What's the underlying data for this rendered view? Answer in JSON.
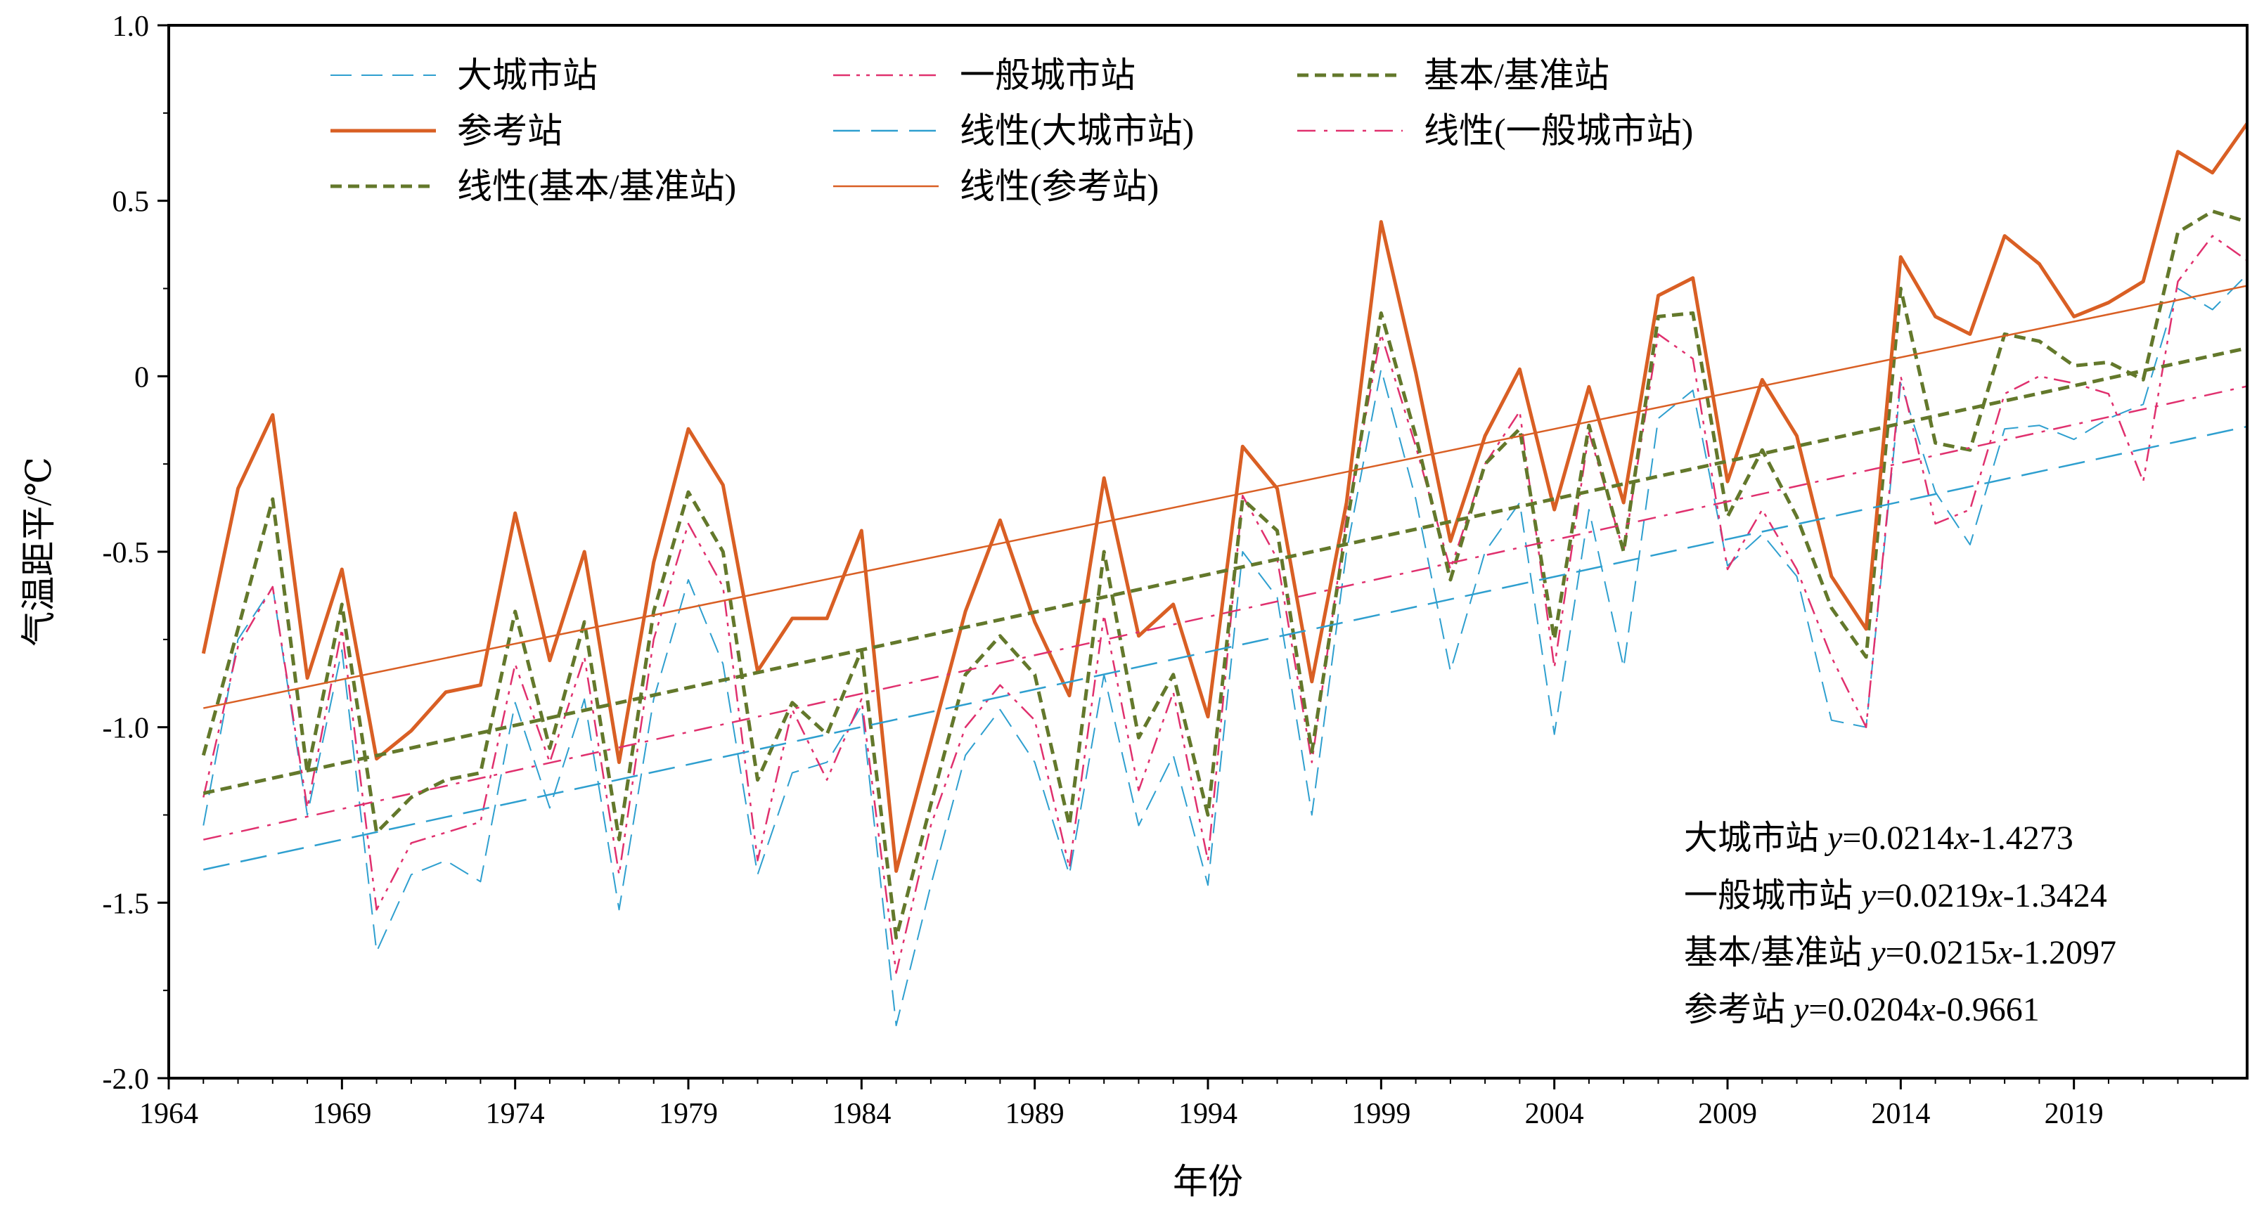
{
  "chart_data": {
    "type": "line",
    "xlabel": "年份",
    "ylabel": "气温距平/℃",
    "xlim": [
      1964,
      2024
    ],
    "ylim": [
      -2.0,
      1.0
    ],
    "x_ticks": [
      1964,
      1969,
      1974,
      1979,
      1984,
      1989,
      1994,
      1999,
      2004,
      2009,
      2014,
      2019
    ],
    "y_ticks": [
      {
        "value": 1.0,
        "label": "1.0"
      },
      {
        "value": 0.5,
        "label": "0.5"
      },
      {
        "value": 0,
        "label": "0"
      },
      {
        "value": -0.5,
        "label": "-0.5"
      },
      {
        "value": -1.0,
        "label": "-1.0"
      },
      {
        "value": -1.5,
        "label": "-1.5"
      },
      {
        "value": -2.0,
        "label": "-2.0"
      }
    ],
    "grid": false,
    "legend_position": "top-left",
    "x": [
      1965,
      1966,
      1967,
      1968,
      1969,
      1970,
      1971,
      1972,
      1973,
      1974,
      1975,
      1976,
      1977,
      1978,
      1979,
      1980,
      1981,
      1982,
      1983,
      1984,
      1985,
      1986,
      1987,
      1988,
      1989,
      1990,
      1991,
      1992,
      1993,
      1994,
      1995,
      1996,
      1997,
      1998,
      1999,
      2000,
      2001,
      2002,
      2003,
      2004,
      2005,
      2006,
      2007,
      2008,
      2009,
      2010,
      2011,
      2012,
      2013,
      2014,
      2015,
      2016,
      2017,
      2018,
      2019,
      2020,
      2021,
      2022,
      2023,
      2024
    ],
    "series": [
      {
        "name": "大城市站",
        "color": "#2e9fcf",
        "dash": "dashed",
        "width": 2,
        "values": [
          -1.28,
          -0.75,
          -0.6,
          -1.25,
          -0.78,
          -1.64,
          -1.42,
          -1.38,
          -1.44,
          -0.93,
          -1.23,
          -0.92,
          -1.52,
          -0.92,
          -0.58,
          -0.82,
          -1.42,
          -1.13,
          -1.1,
          -0.94,
          -1.85,
          -1.45,
          -1.08,
          -0.95,
          -1.1,
          -1.42,
          -0.85,
          -1.28,
          -1.08,
          -1.45,
          -0.5,
          -0.63,
          -1.25,
          -0.5,
          0.02,
          -0.35,
          -0.84,
          -0.5,
          -0.36,
          -1.02,
          -0.38,
          -0.83,
          -0.12,
          -0.04,
          -0.54,
          -0.45,
          -0.57,
          -0.98,
          -1.0,
          -0.02,
          -0.33,
          -0.48,
          -0.15,
          -0.14,
          -0.18,
          -0.12,
          -0.08,
          0.25,
          0.19,
          0.29
        ]
      },
      {
        "name": "一般城市站",
        "color": "#e0306e",
        "dash": "dash-dot-dot",
        "width": 2.5,
        "values": [
          -1.2,
          -0.77,
          -0.6,
          -1.23,
          -0.72,
          -1.52,
          -1.33,
          -1.3,
          -1.27,
          -0.82,
          -1.1,
          -0.8,
          -1.42,
          -0.75,
          -0.42,
          -0.6,
          -1.38,
          -0.95,
          -1.15,
          -0.92,
          -1.7,
          -1.28,
          -1.0,
          -0.88,
          -0.98,
          -1.4,
          -0.68,
          -1.18,
          -0.9,
          -1.38,
          -0.34,
          -0.52,
          -1.1,
          -0.4,
          0.12,
          -0.2,
          -0.55,
          -0.25,
          -0.1,
          -0.83,
          -0.16,
          -0.5,
          0.12,
          0.05,
          -0.55,
          -0.38,
          -0.55,
          -0.8,
          -1.0,
          0.0,
          -0.42,
          -0.38,
          -0.05,
          0.0,
          -0.02,
          -0.05,
          -0.3,
          0.27,
          0.4,
          0.33
        ]
      },
      {
        "name": "基本/基准站",
        "color": "#63782b",
        "dash": "short-dash",
        "width": 5,
        "values": [
          -1.08,
          -0.72,
          -0.35,
          -1.13,
          -0.65,
          -1.3,
          -1.2,
          -1.15,
          -1.13,
          -0.67,
          -1.06,
          -0.7,
          -1.32,
          -0.67,
          -0.33,
          -0.5,
          -1.15,
          -0.93,
          -1.02,
          -0.78,
          -1.6,
          -1.22,
          -0.85,
          -0.74,
          -0.85,
          -1.28,
          -0.5,
          -1.03,
          -0.85,
          -1.25,
          -0.35,
          -0.44,
          -1.07,
          -0.43,
          0.18,
          -0.17,
          -0.58,
          -0.25,
          -0.15,
          -0.75,
          -0.14,
          -0.5,
          0.17,
          0.18,
          -0.4,
          -0.21,
          -0.4,
          -0.66,
          -0.8,
          0.25,
          -0.19,
          -0.21,
          0.12,
          0.1,
          0.03,
          0.04,
          -0.01,
          0.41,
          0.47,
          0.44
        ]
      },
      {
        "name": "参考站",
        "color": "#d95f24",
        "dash": "solid",
        "width": 5,
        "values": [
          -0.79,
          -0.32,
          -0.11,
          -0.86,
          -0.55,
          -1.09,
          -1.01,
          -0.9,
          -0.88,
          -0.39,
          -0.81,
          -0.5,
          -1.1,
          -0.53,
          -0.15,
          -0.31,
          -0.84,
          -0.69,
          -0.69,
          -0.44,
          -1.41,
          -1.04,
          -0.67,
          -0.41,
          -0.7,
          -0.91,
          -0.29,
          -0.74,
          -0.65,
          -0.97,
          -0.2,
          -0.32,
          -0.87,
          -0.36,
          0.44,
          0.01,
          -0.47,
          -0.17,
          0.02,
          -0.38,
          -0.03,
          -0.36,
          0.23,
          0.28,
          -0.3,
          -0.01,
          -0.17,
          -0.57,
          -0.72,
          0.34,
          0.17,
          0.12,
          0.4,
          0.32,
          0.17,
          0.21,
          0.27,
          0.64,
          0.58,
          0.72
        ]
      }
    ],
    "trendlines": [
      {
        "name": "线性(大城市站)",
        "color": "#2e9fcf",
        "dash": "long-dash",
        "width": 2.5,
        "slope": 0.0214,
        "intercept": -1.4273,
        "equation_label": "大城市站",
        "equation": "y=0.0214x-1.4273"
      },
      {
        "name": "线性(一般城市站)",
        "color": "#e0306e",
        "dash": "dash-dot",
        "width": 2.5,
        "slope": 0.0219,
        "intercept": -1.3424,
        "equation_label": "一般城市站",
        "equation": "y=0.0219x-1.3424"
      },
      {
        "name": "线性(基本/基准站)",
        "color": "#63782b",
        "dash": "short-dash",
        "width": 5,
        "slope": 0.0215,
        "intercept": -1.2097,
        "equation_label": "基本/基准站",
        "equation": "y=0.0215x-1.2097"
      },
      {
        "name": "线性(参考站)",
        "color": "#d95f24",
        "dash": "solid",
        "width": 2.5,
        "slope": 0.0204,
        "intercept": -0.9661,
        "equation_label": "参考站",
        "equation": "y=0.0204x-0.9661"
      }
    ],
    "legend": [
      {
        "ref": "series",
        "index": 0
      },
      {
        "ref": "series",
        "index": 1
      },
      {
        "ref": "series",
        "index": 2
      },
      {
        "ref": "series",
        "index": 3
      },
      {
        "ref": "trendlines",
        "index": 0
      },
      {
        "ref": "trendlines",
        "index": 1
      },
      {
        "ref": "trendlines",
        "index": 2
      },
      {
        "ref": "trendlines",
        "index": 3
      }
    ]
  }
}
